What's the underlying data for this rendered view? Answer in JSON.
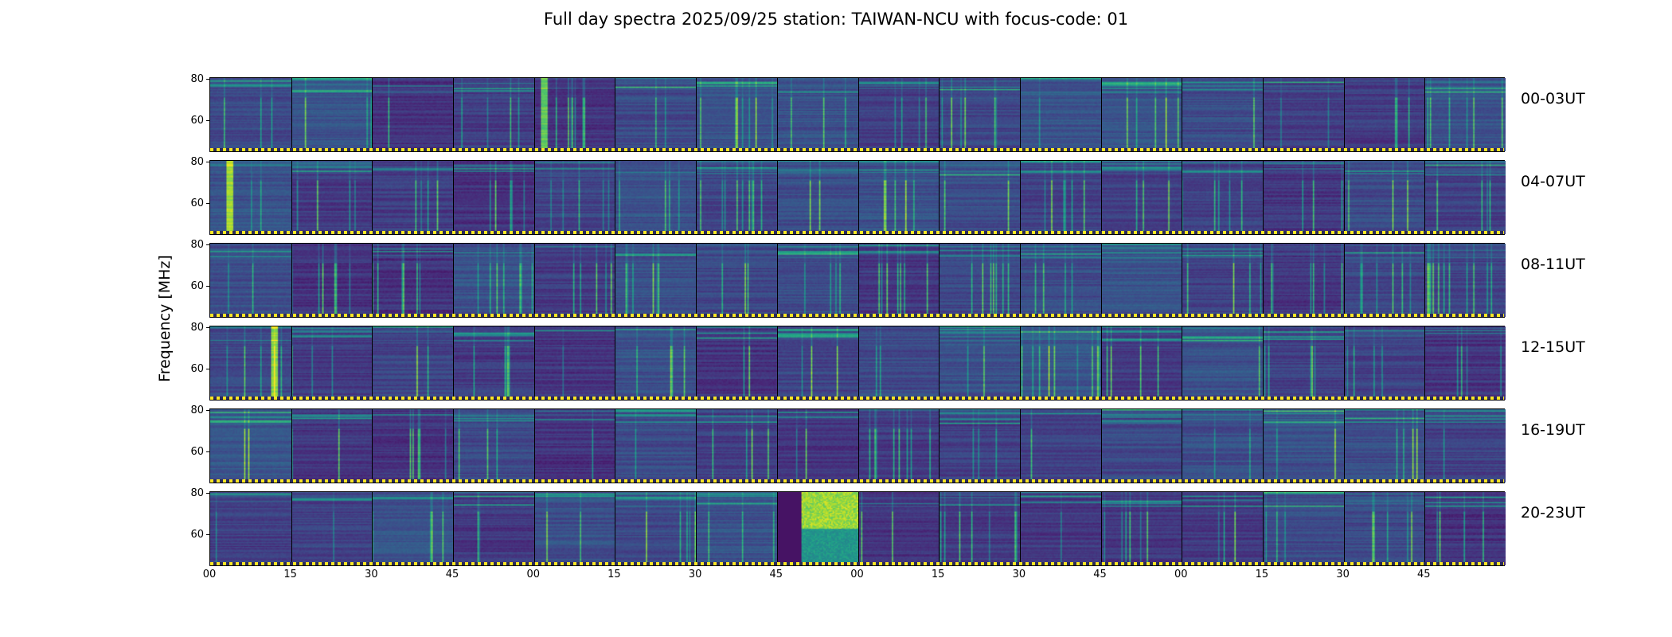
{
  "chart_data": {
    "type": "heatmap",
    "title": "Full day spectra 2025/09/25 station: TAIWAN-NCU with focus-code: 01",
    "ylabel": "Frequency [MHz]",
    "xlabel": "",
    "ylim": [
      45,
      81
    ],
    "yticks": [
      "80",
      "60"
    ],
    "xticks": [
      "00",
      "15",
      "30",
      "45",
      "00",
      "15",
      "30",
      "45",
      "00",
      "15",
      "30",
      "45",
      "00",
      "15",
      "30",
      "45"
    ],
    "rows": [
      {
        "label": "00-03UT"
      },
      {
        "label": "04-07UT"
      },
      {
        "label": "08-11UT"
      },
      {
        "label": "12-15UT"
      },
      {
        "label": "16-19UT"
      },
      {
        "label": "20-23UT"
      }
    ],
    "panels_per_row": 16,
    "colormap": "viridis",
    "bright_panels": [
      [
        0,
        4
      ],
      [
        1,
        0
      ],
      [
        3,
        0
      ],
      [
        5,
        7
      ]
    ]
  }
}
